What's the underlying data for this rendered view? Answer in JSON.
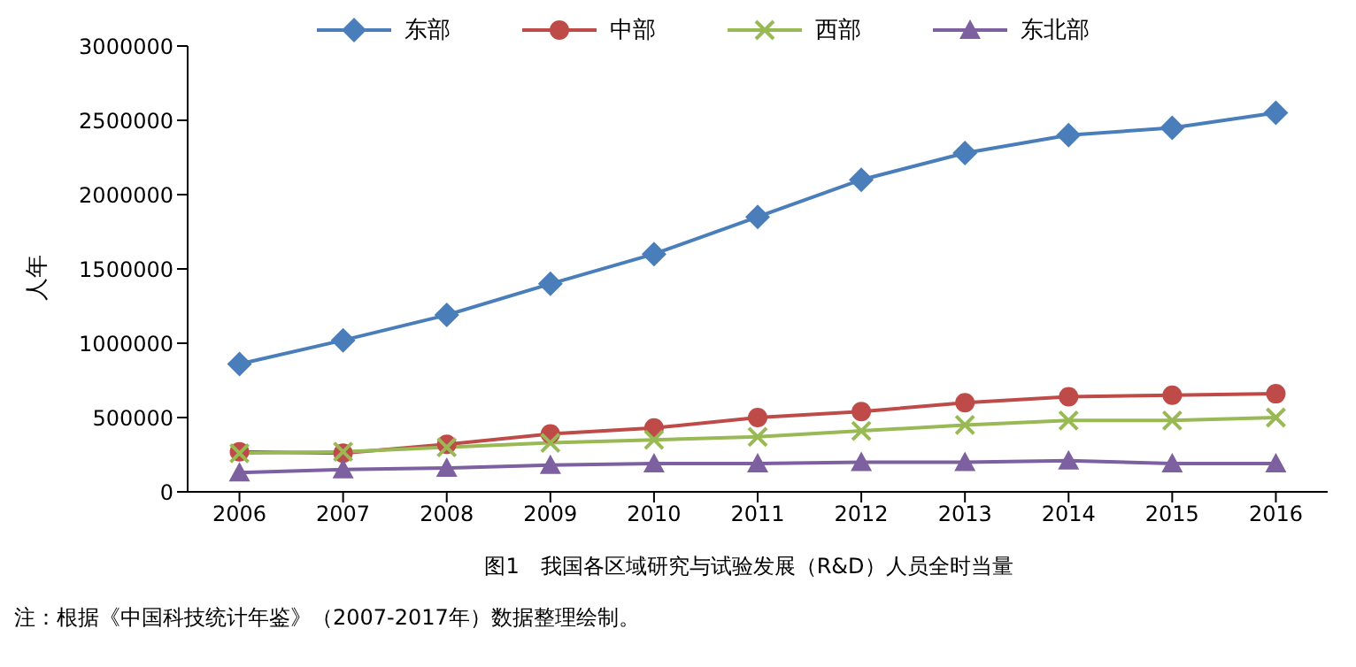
{
  "chart_data": {
    "type": "line",
    "title": "图1　我国各区域研究与试验发展（R&D）人员全时当量",
    "ylabel": "人年",
    "annotations": [
      "注：根据《中国科技统计年鉴》（2007-2017年）数据整理绘制。"
    ],
    "categories": [
      "2006",
      "2007",
      "2008",
      "2009",
      "2010",
      "2011",
      "2012",
      "2013",
      "2014",
      "2015",
      "2016"
    ],
    "series": [
      {
        "name": "东部",
        "color": "#4a7ebb",
        "marker": "diamond",
        "values": [
          860000,
          1020000,
          1190000,
          1400000,
          1600000,
          1850000,
          2100000,
          2280000,
          2400000,
          2450000,
          2550000
        ]
      },
      {
        "name": "中部",
        "color": "#be4b48",
        "marker": "circle",
        "values": [
          270000,
          260000,
          320000,
          390000,
          430000,
          500000,
          540000,
          600000,
          640000,
          650000,
          660000
        ]
      },
      {
        "name": "西部",
        "color": "#98b954",
        "marker": "cross",
        "values": [
          260000,
          270000,
          300000,
          330000,
          350000,
          370000,
          410000,
          450000,
          480000,
          480000,
          500000
        ]
      },
      {
        "name": "东北部",
        "color": "#7d60a0",
        "marker": "triangle",
        "values": [
          130000,
          150000,
          160000,
          180000,
          190000,
          190000,
          200000,
          200000,
          210000,
          190000,
          190000
        ]
      }
    ],
    "ylim": [
      0,
      3000000
    ],
    "yticks": [
      0,
      500000,
      1000000,
      1500000,
      2000000,
      2500000,
      3000000
    ],
    "grid": false,
    "legend": "top",
    "line_style": "solid"
  }
}
